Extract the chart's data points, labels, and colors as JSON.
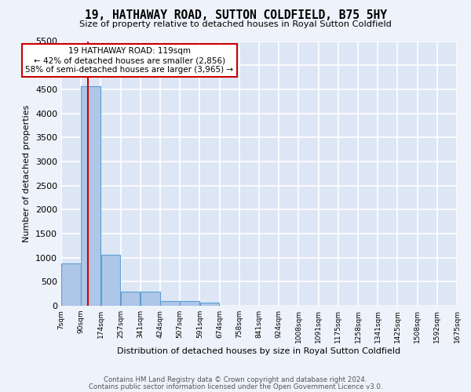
{
  "title_line1": "19, HATHAWAY ROAD, SUTTON COLDFIELD, B75 5HY",
  "title_line2": "Size of property relative to detached houses in Royal Sutton Coldfield",
  "xlabel": "Distribution of detached houses by size in Royal Sutton Coldfield",
  "ylabel": "Number of detached properties",
  "footer_line1": "Contains HM Land Registry data © Crown copyright and database right 2024.",
  "footer_line2": "Contains public sector information licensed under the Open Government Licence v3.0.",
  "annotation_line1": "19 HATHAWAY ROAD: 119sqm",
  "annotation_line2": "← 42% of detached houses are smaller (2,856)",
  "annotation_line3": "58% of semi-detached houses are larger (3,965) →",
  "bar_color": "#aec6e8",
  "bar_edge_color": "#5a9fd4",
  "vline_color": "#cc0000",
  "bg_color": "#dde6f5",
  "grid_color": "#ffffff",
  "fig_bg_color": "#eef2fa",
  "bin_labels": [
    "7sqm",
    "90sqm",
    "174sqm",
    "257sqm",
    "341sqm",
    "424sqm",
    "507sqm",
    "591sqm",
    "674sqm",
    "758sqm",
    "841sqm",
    "924sqm",
    "1008sqm",
    "1091sqm",
    "1175sqm",
    "1258sqm",
    "1341sqm",
    "1425sqm",
    "1508sqm",
    "1592sqm",
    "1675sqm"
  ],
  "bin_edges": [
    7,
    90,
    174,
    257,
    341,
    424,
    507,
    591,
    674,
    758,
    841,
    924,
    1008,
    1091,
    1175,
    1258,
    1341,
    1425,
    1508,
    1592,
    1675
  ],
  "bar_heights": [
    880,
    4570,
    1060,
    290,
    290,
    90,
    90,
    60,
    0,
    0,
    0,
    0,
    0,
    0,
    0,
    0,
    0,
    0,
    0,
    0
  ],
  "property_size": 119,
  "ylim_max": 5500,
  "yticks": [
    0,
    500,
    1000,
    1500,
    2000,
    2500,
    3000,
    3500,
    4000,
    4500,
    5000,
    5500
  ]
}
